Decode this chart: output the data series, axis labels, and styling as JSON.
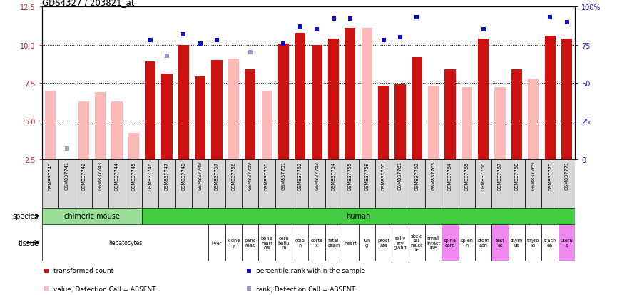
{
  "title": "GDS4327 / 203821_at",
  "samples": [
    "GSM837740",
    "GSM837741",
    "GSM837742",
    "GSM837743",
    "GSM837744",
    "GSM837745",
    "GSM837746",
    "GSM837747",
    "GSM837748",
    "GSM837749",
    "GSM837757",
    "GSM837756",
    "GSM837759",
    "GSM837750",
    "GSM837751",
    "GSM837752",
    "GSM837753",
    "GSM837754",
    "GSM837755",
    "GSM837758",
    "GSM837760",
    "GSM837761",
    "GSM837762",
    "GSM837763",
    "GSM837764",
    "GSM837765",
    "GSM837766",
    "GSM837767",
    "GSM837768",
    "GSM837769",
    "GSM837770",
    "GSM837771"
  ],
  "values": [
    7.0,
    2.5,
    6.3,
    6.9,
    6.3,
    4.2,
    8.9,
    8.1,
    10.0,
    7.9,
    9.0,
    9.1,
    8.4,
    7.0,
    10.1,
    10.8,
    10.0,
    10.4,
    11.1,
    11.1,
    7.3,
    7.4,
    9.2,
    7.3,
    8.4,
    7.2,
    10.4,
    7.2,
    8.4,
    7.8,
    10.6,
    10.4
  ],
  "rank_pcts": [
    null,
    7.0,
    null,
    null,
    null,
    null,
    78.0,
    68.0,
    82.0,
    76.0,
    78.0,
    null,
    70.0,
    null,
    76.0,
    87.0,
    85.0,
    92.0,
    92.0,
    null,
    78.0,
    80.0,
    93.0,
    null,
    null,
    null,
    85.0,
    null,
    null,
    null,
    93.0,
    90.0
  ],
  "absent_value": [
    true,
    true,
    true,
    true,
    true,
    true,
    false,
    false,
    false,
    false,
    false,
    true,
    false,
    true,
    false,
    false,
    false,
    false,
    false,
    true,
    false,
    false,
    false,
    true,
    false,
    true,
    false,
    true,
    false,
    true,
    false,
    false
  ],
  "absent_rank": [
    false,
    true,
    false,
    false,
    false,
    false,
    false,
    true,
    false,
    false,
    false,
    false,
    true,
    false,
    false,
    false,
    false,
    false,
    false,
    false,
    false,
    false,
    false,
    false,
    false,
    false,
    false,
    false,
    false,
    false,
    false,
    false
  ],
  "ylim_left": [
    2.5,
    12.5
  ],
  "ylim_right": [
    0,
    100
  ],
  "yticks_left": [
    2.5,
    5.0,
    7.5,
    10.0,
    12.5
  ],
  "yticks_right": [
    0,
    25,
    50,
    75,
    100
  ],
  "ytick_right_labels": [
    "0",
    "25",
    "50",
    "75",
    "100%"
  ],
  "bar_color_present": "#cc1111",
  "bar_color_absent": "#ffb8b8",
  "rank_color_present": "#1111cc",
  "rank_color_absent": "#9999cc",
  "bg_color": "#f0f0f0",
  "species_chimeric_color": "#99dd99",
  "species_human_color": "#44cc44",
  "tissue_normal_color": "#ffffff",
  "tissue_pink_color": "#ee88ee",
  "species": [
    {
      "label": "chimeric mouse",
      "start": 0,
      "end": 6
    },
    {
      "label": "human",
      "start": 6,
      "end": 32
    }
  ],
  "tissues": [
    {
      "label": "hepatocytes",
      "start": 0,
      "end": 10,
      "pink": false
    },
    {
      "label": "liver",
      "start": 10,
      "end": 11,
      "pink": false
    },
    {
      "label": "kidne\ny",
      "start": 11,
      "end": 12,
      "pink": false
    },
    {
      "label": "panc\nreas",
      "start": 12,
      "end": 13,
      "pink": false
    },
    {
      "label": "bone\nmarr\now",
      "start": 13,
      "end": 14,
      "pink": false
    },
    {
      "label": "cere\nbellu\nm",
      "start": 14,
      "end": 15,
      "pink": false
    },
    {
      "label": "colo\nn",
      "start": 15,
      "end": 16,
      "pink": false
    },
    {
      "label": "corte\nx",
      "start": 16,
      "end": 17,
      "pink": false
    },
    {
      "label": "fetal\nbrain",
      "start": 17,
      "end": 18,
      "pink": false
    },
    {
      "label": "heart",
      "start": 18,
      "end": 19,
      "pink": false
    },
    {
      "label": "lun\ng",
      "start": 19,
      "end": 20,
      "pink": false
    },
    {
      "label": "prost\nate",
      "start": 20,
      "end": 21,
      "pink": false
    },
    {
      "label": "saliv\nary\ngland",
      "start": 21,
      "end": 22,
      "pink": false
    },
    {
      "label": "skele\ntal\nmusc\nle",
      "start": 22,
      "end": 23,
      "pink": false
    },
    {
      "label": "small\nintest\nine",
      "start": 23,
      "end": 24,
      "pink": false
    },
    {
      "label": "spina\ncord",
      "start": 24,
      "end": 25,
      "pink": true
    },
    {
      "label": "splen\nn",
      "start": 25,
      "end": 26,
      "pink": false
    },
    {
      "label": "stom\nach",
      "start": 26,
      "end": 27,
      "pink": false
    },
    {
      "label": "test\nes",
      "start": 27,
      "end": 28,
      "pink": true
    },
    {
      "label": "thym\nus",
      "start": 28,
      "end": 29,
      "pink": false
    },
    {
      "label": "thyro\nid",
      "start": 29,
      "end": 30,
      "pink": false
    },
    {
      "label": "trach\nea",
      "start": 30,
      "end": 31,
      "pink": false
    },
    {
      "label": "uteru\ns",
      "start": 31,
      "end": 32,
      "pink": true
    }
  ],
  "legend_items": [
    {
      "label": "transformed count",
      "color": "#cc1111"
    },
    {
      "label": "percentile rank within the sample",
      "color": "#1111cc"
    },
    {
      "label": "value, Detection Call = ABSENT",
      "color": "#ffb8b8"
    },
    {
      "label": "rank, Detection Call = ABSENT",
      "color": "#9999cc"
    }
  ]
}
